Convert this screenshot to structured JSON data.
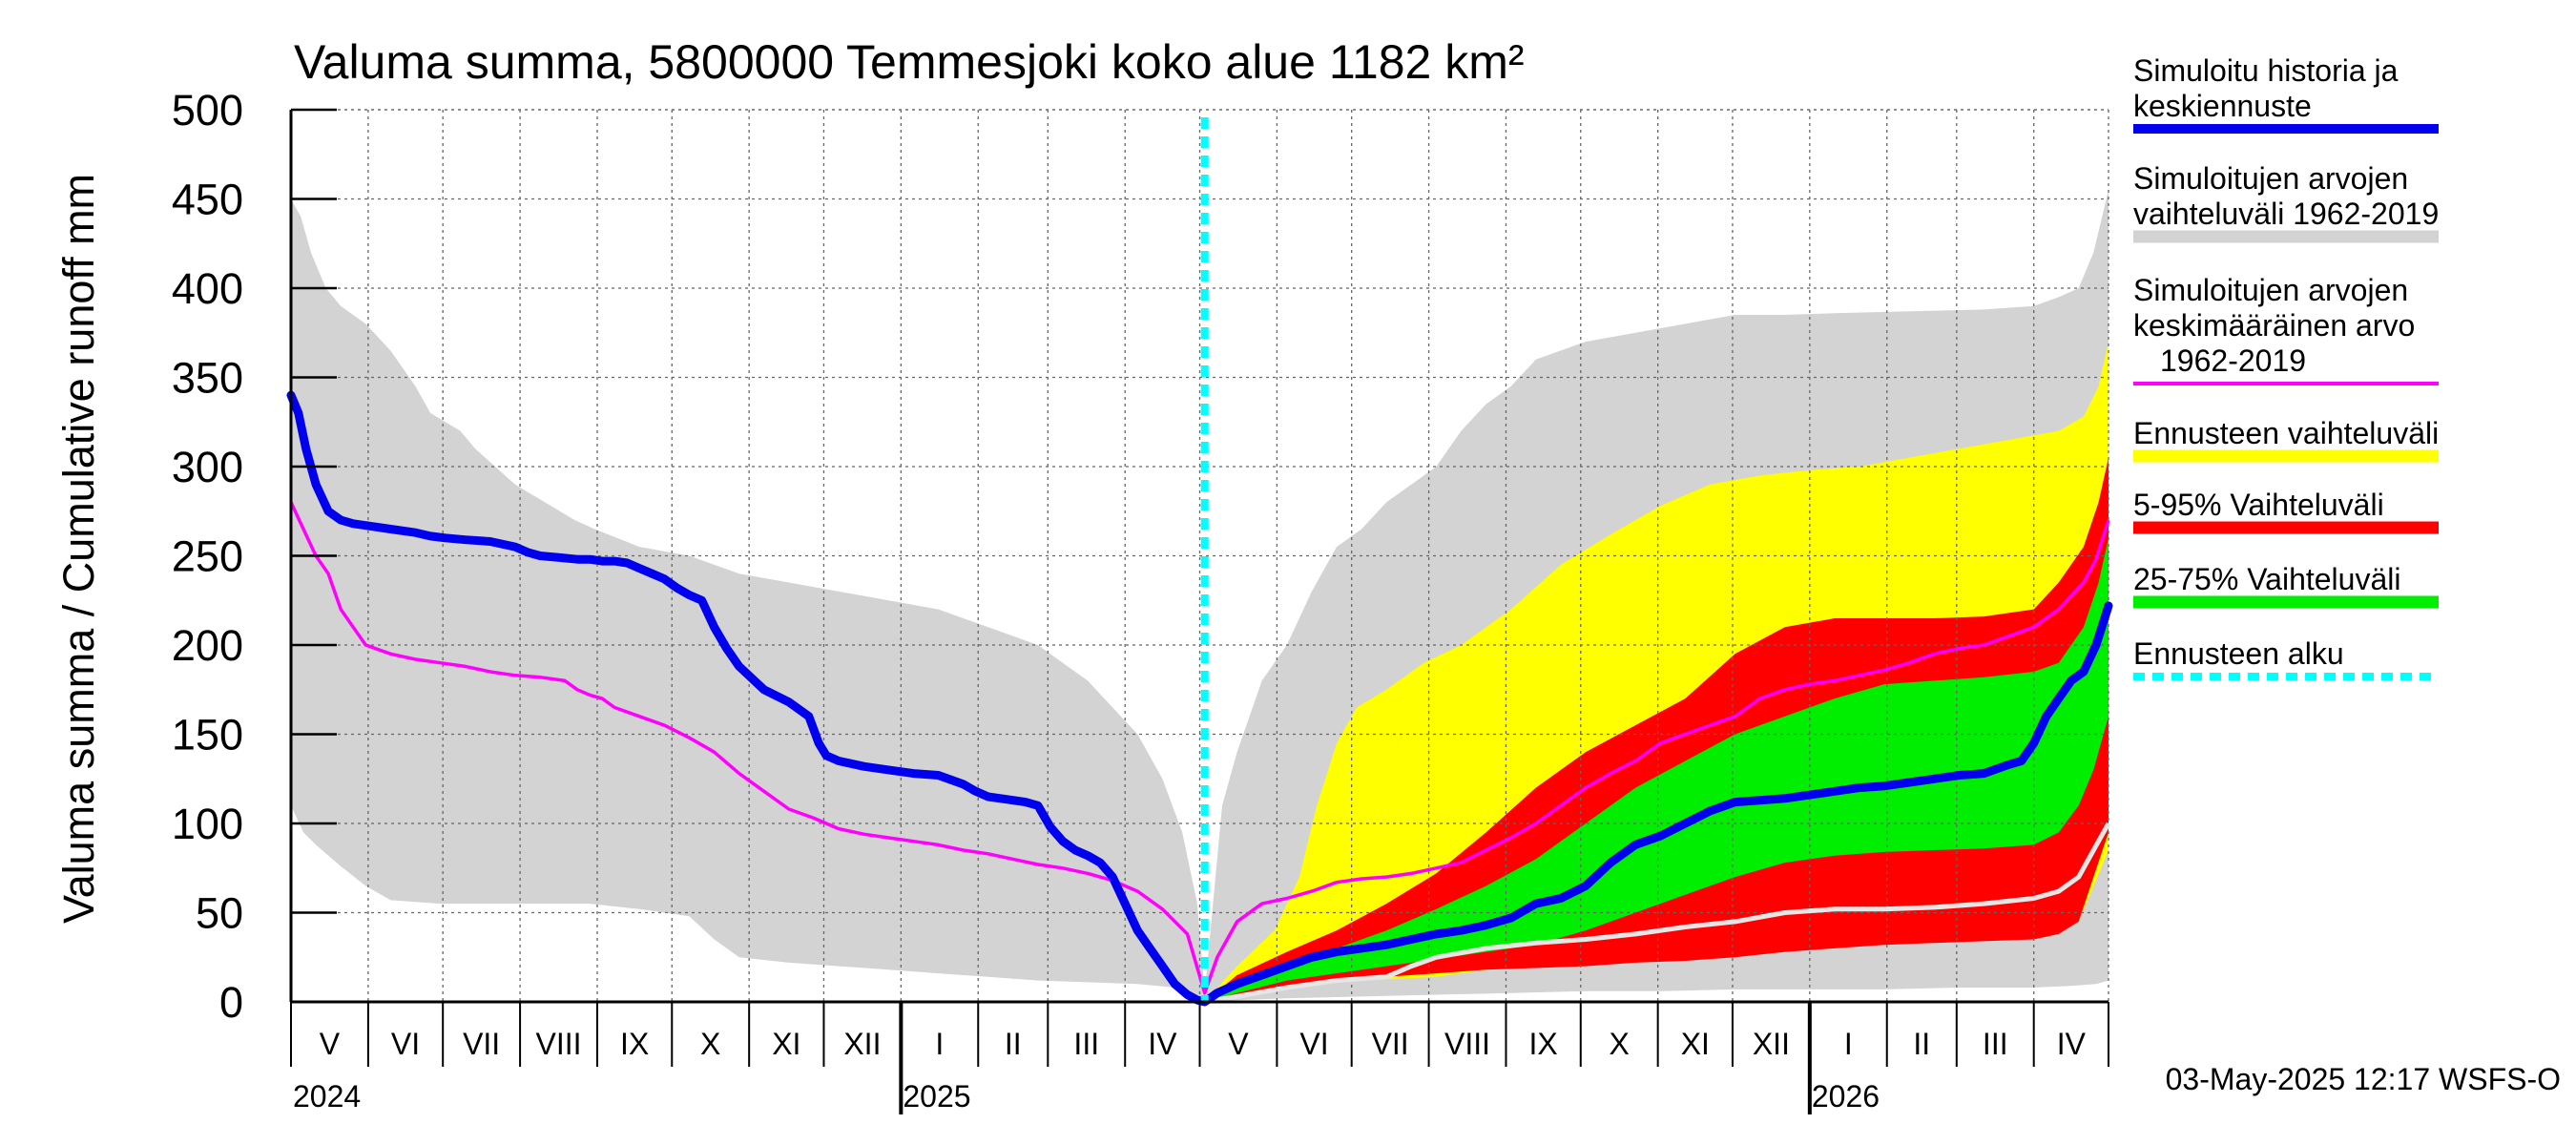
{
  "chart_data": {
    "type": "area",
    "title": "Valuma summa, 5800000 Temmesjoki koko alue 1182 km²",
    "ylabel": "Valuma summa / Cumulative runoff    mm",
    "ylim": [
      0,
      500
    ],
    "yticks": [
      0,
      50,
      100,
      150,
      200,
      250,
      300,
      350,
      400,
      450,
      500
    ],
    "x_range_days": [
      0,
      730
    ],
    "forecast_start_day": 367,
    "months": [
      {
        "label": "V",
        "start": 0
      },
      {
        "label": "VI",
        "start": 31
      },
      {
        "label": "VII",
        "start": 61
      },
      {
        "label": "VIII",
        "start": 92
      },
      {
        "label": "IX",
        "start": 123
      },
      {
        "label": "X",
        "start": 153
      },
      {
        "label": "XI",
        "start": 184
      },
      {
        "label": "XII",
        "start": 214
      },
      {
        "label": "I",
        "start": 245
      },
      {
        "label": "II",
        "start": 276
      },
      {
        "label": "III",
        "start": 304
      },
      {
        "label": "IV",
        "start": 335
      },
      {
        "label": "V",
        "start": 365
      },
      {
        "label": "VI",
        "start": 396
      },
      {
        "label": "VII",
        "start": 426
      },
      {
        "label": "VIII",
        "start": 457
      },
      {
        "label": "IX",
        "start": 488
      },
      {
        "label": "X",
        "start": 518
      },
      {
        "label": "XI",
        "start": 549
      },
      {
        "label": "XII",
        "start": 579
      },
      {
        "label": "I",
        "start": 610
      },
      {
        "label": "II",
        "start": 641
      },
      {
        "label": "III",
        "start": 669
      },
      {
        "label": "IV",
        "start": 700
      }
    ],
    "year_labels": [
      {
        "label": "2024",
        "day": 0
      },
      {
        "label": "2025",
        "day": 245
      },
      {
        "label": "2026",
        "day": 610
      }
    ],
    "year_ticks": [
      245,
      610
    ],
    "legend": [
      {
        "label": "Simuloitu historia ja keskiennuste",
        "lines": [
          "Simuloitu historia ja",
          "keskiennuste"
        ],
        "color": "#0000ee",
        "style": "line"
      },
      {
        "label": "Simuloitujen arvojen vaihteluväli 1962-2019",
        "lines": [
          "Simuloitujen arvojen",
          "vaihteluväli 1962-2019"
        ],
        "color": "#d3d3d3",
        "style": "band"
      },
      {
        "label": "Simuloitujen arvojen keskimääräinen arvo 1962-2019",
        "lines": [
          "Simuloitujen arvojen",
          "keskimääräinen arvo",
          "1962-2019"
        ],
        "color": "#ff00ff",
        "style": "thin"
      },
      {
        "label": "Ennusteen vaihteluväli",
        "lines": [
          "Ennusteen vaihteluväli"
        ],
        "color": "#ffff00",
        "style": "band"
      },
      {
        "label": "5-95% Vaihteluväli",
        "lines": [
          "5-95% Vaihteluväli"
        ],
        "color": "#ff0000",
        "style": "band"
      },
      {
        "label": "25-75% Vaihteluväli",
        "lines": [
          "25-75% Vaihteluväli"
        ],
        "color": "#00ee00",
        "style": "band"
      },
      {
        "label": "Ennusteen alku",
        "lines": [
          "Ennusteen alku"
        ],
        "color": "#00ffff",
        "style": "dashed"
      }
    ],
    "footer": "03-May-2025 12:17 WSFS-O",
    "series": [
      {
        "name": "hist_range_upper",
        "x": [
          0,
          4,
          8,
          14,
          20,
          30,
          40,
          50,
          56,
          62,
          68,
          74,
          82,
          90,
          96,
          102,
          108,
          114,
          122,
          140,
          160,
          180,
          200,
          220,
          240,
          260,
          280,
          300,
          310,
          320,
          330,
          340,
          350,
          358,
          364,
          367
        ],
        "y": [
          450,
          440,
          420,
          400,
          390,
          380,
          365,
          345,
          330,
          325,
          320,
          310,
          300,
          290,
          285,
          280,
          275,
          270,
          265,
          255,
          250,
          240,
          235,
          230,
          225,
          220,
          210,
          200,
          190,
          180,
          165,
          150,
          125,
          95,
          55,
          5
        ]
      },
      {
        "name": "hist_range_lower",
        "x": [
          0,
          5,
          10,
          20,
          30,
          40,
          60,
          80,
          100,
          120,
          140,
          160,
          170,
          180,
          200,
          220,
          240,
          260,
          280,
          300,
          320,
          340,
          355,
          362,
          367
        ],
        "y": [
          110,
          95,
          88,
          76,
          65,
          57,
          55,
          55,
          55,
          55,
          52,
          48,
          35,
          25,
          22,
          20,
          18,
          16,
          14,
          12,
          11,
          10,
          8,
          5,
          0
        ]
      },
      {
        "name": "future_range_upper",
        "x": [
          367,
          370,
          374,
          380,
          390,
          400,
          410,
          420,
          430,
          440,
          450,
          460,
          470,
          480,
          490,
          500,
          520,
          540,
          560,
          580,
          600,
          620,
          650,
          680,
          700,
          710,
          718,
          724,
          730
        ],
        "y": [
          5,
          50,
          110,
          140,
          180,
          200,
          230,
          255,
          265,
          280,
          290,
          300,
          320,
          335,
          345,
          360,
          370,
          375,
          380,
          385,
          385,
          386,
          387,
          388,
          390,
          395,
          400,
          420,
          455
        ]
      },
      {
        "name": "future_range_lower",
        "x": [
          367,
          380,
          400,
          430,
          460,
          490,
          520,
          550,
          580,
          610,
          640,
          670,
          700,
          715,
          725,
          730
        ],
        "y": [
          0,
          1,
          2,
          3,
          4,
          5,
          6,
          6,
          7,
          7,
          7,
          8,
          8,
          9,
          10,
          12
        ]
      },
      {
        "name": "forecast_range_upper",
        "x": [
          367,
          380,
          395,
          405,
          412,
          420,
          428,
          440,
          455,
          470,
          490,
          510,
          530,
          550,
          570,
          590,
          610,
          630,
          650,
          670,
          690,
          710,
          720,
          726,
          730
        ],
        "y": [
          0,
          20,
          40,
          70,
          110,
          145,
          165,
          175,
          190,
          200,
          220,
          245,
          262,
          278,
          290,
          295,
          298,
          300,
          305,
          310,
          315,
          320,
          328,
          345,
          370
        ]
      },
      {
        "name": "forecast_range_lower",
        "x": [
          367,
          380,
          400,
          430,
          460,
          490,
          520,
          550,
          580,
          610,
          640,
          670,
          700,
          710,
          718,
          724,
          730
        ],
        "y": [
          0,
          5,
          10,
          12,
          14,
          20,
          25,
          30,
          33,
          35,
          36,
          37,
          38,
          40,
          45,
          65,
          85
        ]
      },
      {
        "name": "p95",
        "x": [
          367,
          380,
          400,
          420,
          440,
          460,
          480,
          500,
          520,
          540,
          560,
          580,
          600,
          620,
          640,
          660,
          680,
          700,
          710,
          720,
          726,
          730
        ],
        "y": [
          0,
          15,
          28,
          40,
          55,
          72,
          95,
          120,
          140,
          155,
          170,
          195,
          210,
          215,
          215,
          215,
          216,
          220,
          235,
          255,
          280,
          305
        ]
      },
      {
        "name": "p5",
        "x": [
          367,
          380,
          400,
          420,
          440,
          460,
          480,
          500,
          520,
          540,
          560,
          580,
          600,
          620,
          640,
          660,
          680,
          700,
          710,
          718,
          724,
          730
        ],
        "y": [
          0,
          3,
          8,
          12,
          14,
          16,
          18,
          19,
          20,
          22,
          23,
          25,
          28,
          30,
          32,
          33,
          34,
          35,
          38,
          45,
          70,
          95
        ]
      },
      {
        "name": "p75",
        "x": [
          367,
          380,
          400,
          420,
          440,
          460,
          480,
          500,
          520,
          540,
          560,
          580,
          600,
          620,
          640,
          660,
          680,
          700,
          710,
          720,
          726,
          730
        ],
        "y": [
          0,
          12,
          22,
          30,
          40,
          52,
          65,
          80,
          100,
          120,
          135,
          150,
          160,
          170,
          178,
          180,
          182,
          185,
          190,
          210,
          235,
          260
        ]
      },
      {
        "name": "p25",
        "x": [
          367,
          380,
          400,
          420,
          440,
          460,
          480,
          500,
          520,
          540,
          560,
          580,
          600,
          620,
          640,
          660,
          680,
          700,
          710,
          718,
          724,
          730
        ],
        "y": [
          0,
          5,
          12,
          16,
          20,
          24,
          28,
          32,
          40,
          50,
          60,
          70,
          78,
          82,
          84,
          85,
          86,
          88,
          95,
          110,
          130,
          160
        ]
      },
      {
        "name": "Simuloitu historia ja keskiennuste",
        "x": [
          0,
          3,
          6,
          10,
          15,
          20,
          25,
          30,
          40,
          50,
          56,
          62,
          70,
          80,
          90,
          95,
          100,
          108,
          115,
          120,
          125,
          130,
          135,
          140,
          145,
          150,
          155,
          160,
          165,
          170,
          175,
          180,
          190,
          200,
          208,
          212,
          215,
          220,
          230,
          240,
          250,
          260,
          270,
          275,
          280,
          285,
          290,
          295,
          300,
          305,
          310,
          315,
          320,
          325,
          330,
          335,
          340,
          345,
          350,
          355,
          360,
          364,
          367,
          372,
          380,
          390,
          400,
          410,
          420,
          430,
          440,
          450,
          460,
          470,
          480,
          490,
          500,
          510,
          520,
          530,
          540,
          550,
          560,
          570,
          580,
          590,
          600,
          610,
          620,
          630,
          640,
          650,
          660,
          670,
          680,
          690,
          695,
          700,
          705,
          710,
          715,
          720,
          725,
          730
        ],
        "y": [
          340,
          330,
          310,
          290,
          275,
          270,
          268,
          267,
          265,
          263,
          261,
          260,
          259,
          258,
          255,
          252,
          250,
          249,
          248,
          248,
          247,
          247,
          246,
          243,
          240,
          237,
          232,
          228,
          225,
          210,
          198,
          188,
          175,
          168,
          160,
          145,
          138,
          135,
          132,
          130,
          128,
          127,
          122,
          118,
          115,
          114,
          113,
          112,
          110,
          98,
          90,
          85,
          82,
          78,
          70,
          55,
          40,
          30,
          20,
          10,
          4,
          1,
          0,
          5,
          10,
          15,
          20,
          25,
          28,
          30,
          32,
          35,
          38,
          40,
          43,
          47,
          55,
          58,
          65,
          78,
          88,
          93,
          100,
          107,
          112,
          113,
          114,
          116,
          118,
          120,
          121,
          123,
          125,
          127,
          128,
          133,
          135,
          145,
          160,
          170,
          180,
          185,
          200,
          222
        ]
      },
      {
        "name": "Simuloitujen arvojen keskimääräinen arvo 1962-2019",
        "x": [
          0,
          5,
          10,
          15,
          20,
          25,
          30,
          40,
          50,
          60,
          70,
          80,
          90,
          100,
          110,
          115,
          120,
          125,
          130,
          140,
          150,
          160,
          170,
          180,
          190,
          200,
          210,
          220,
          230,
          240,
          250,
          260,
          270,
          280,
          290,
          300,
          310,
          320,
          330,
          340,
          350,
          360,
          367,
          372,
          380,
          390,
          400,
          410,
          420,
          430,
          440,
          450,
          460,
          470,
          480,
          490,
          500,
          510,
          520,
          530,
          540,
          550,
          560,
          570,
          580,
          590,
          600,
          610,
          620,
          630,
          640,
          650,
          660,
          670,
          680,
          690,
          700,
          710,
          720,
          725,
          730
        ],
        "y": [
          280,
          265,
          250,
          240,
          220,
          210,
          200,
          195,
          192,
          190,
          188,
          185,
          183,
          182,
          180,
          175,
          172,
          170,
          165,
          160,
          155,
          148,
          140,
          128,
          118,
          108,
          103,
          97,
          94,
          92,
          90,
          88,
          85,
          83,
          80,
          77,
          75,
          72,
          68,
          62,
          52,
          38,
          5,
          25,
          45,
          55,
          58,
          62,
          67,
          69,
          70,
          72,
          75,
          78,
          85,
          92,
          100,
          110,
          120,
          128,
          135,
          145,
          150,
          155,
          160,
          170,
          175,
          178,
          180,
          183,
          186,
          190,
          195,
          198,
          200,
          205,
          210,
          220,
          235,
          248,
          270
        ]
      },
      {
        "name": "hist_low_white",
        "x": [
          367,
          380,
          400,
          420,
          440,
          450,
          460,
          480,
          500,
          520,
          540,
          560,
          580,
          600,
          620,
          640,
          660,
          680,
          700,
          710,
          718,
          724,
          730
        ],
        "y": [
          0,
          3,
          8,
          12,
          14,
          20,
          25,
          30,
          33,
          35,
          38,
          42,
          45,
          50,
          52,
          52,
          53,
          55,
          58,
          62,
          70,
          85,
          100
        ]
      }
    ]
  }
}
